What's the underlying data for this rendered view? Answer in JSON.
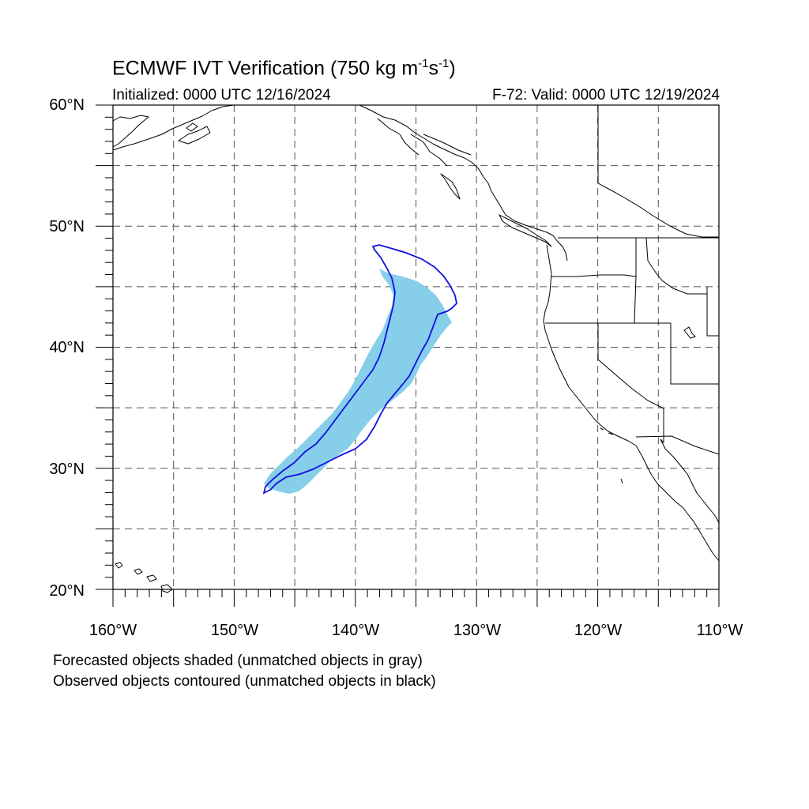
{
  "title": {
    "main": "ECMWF IVT Verification (750 kg m",
    "exp1": "-1",
    "mid": "s",
    "exp2": "-1",
    "end": ")"
  },
  "initialized": "Initialized: 0000 UTC 12/16/2024",
  "valid": "F-72: Valid: 0000 UTC 12/19/2024",
  "lat_labels": [
    "60°N",
    "50°N",
    "40°N",
    "30°N",
    "20°N"
  ],
  "lon_labels": [
    "160°W",
    "150°W",
    "140°W",
    "130°W",
    "120°W",
    "110°W"
  ],
  "notes": {
    "forecast": "Forecasted objects shaded (unmatched objects in gray)",
    "observed": "Observed objects contoured (unmatched objects in black)"
  },
  "map": {
    "lon_range": [
      -160,
      -110
    ],
    "lat_range": [
      20,
      60
    ],
    "grid_step_deg": 5,
    "grid_style": "dashed",
    "colors": {
      "forecast_fill": "#87ceeb",
      "observed_contour": "#1010e0",
      "coastline": "#000000"
    }
  }
}
